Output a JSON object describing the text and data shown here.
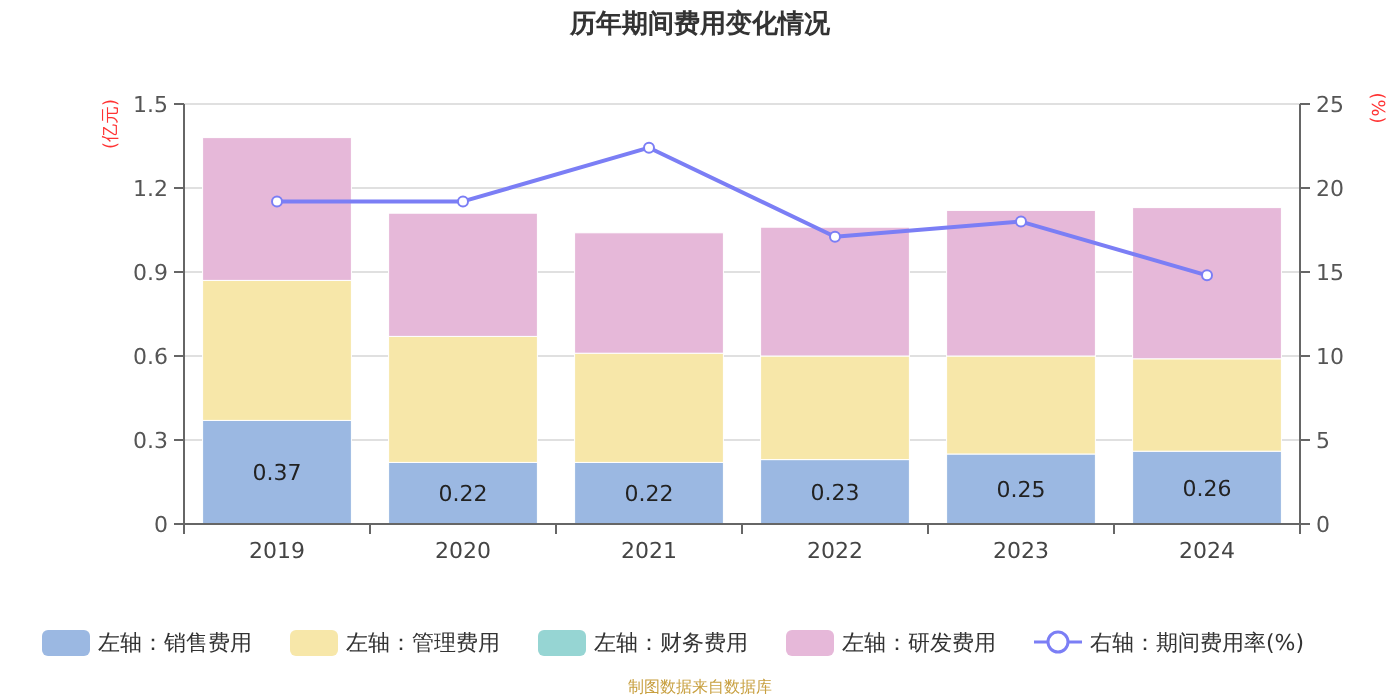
{
  "chart_data": {
    "type": "bar",
    "title": "历年期间费用变化情况",
    "ylabel": "(亿元)",
    "y2label": "(%)",
    "categories": [
      "2019",
      "2020",
      "2021",
      "2022",
      "2023",
      "2024"
    ],
    "stacked": true,
    "grid": "y",
    "legend": "bottom",
    "ylim": [
      0,
      1.5
    ],
    "yticks": [
      0,
      0.3,
      0.6,
      0.9,
      1.2,
      1.5
    ],
    "y2lim": [
      0,
      25
    ],
    "y2ticks": [
      0,
      5,
      10,
      15,
      20,
      25
    ],
    "series": [
      {
        "name": "左轴：销售费用",
        "color": "#9bb8e2",
        "values": [
          0.37,
          0.22,
          0.22,
          0.23,
          0.25,
          0.26
        ],
        "value_labels": [
          "0.37",
          "0.22",
          "0.22",
          "0.23",
          "0.25",
          "0.26"
        ]
      },
      {
        "name": "左轴：管理费用",
        "color": "#f7e7a9",
        "values": [
          0.5,
          0.45,
          0.39,
          0.37,
          0.35,
          0.33
        ]
      },
      {
        "name": "左轴：财务费用",
        "color": "#96d5d3",
        "values": [
          0,
          0,
          0,
          0,
          0,
          0
        ]
      },
      {
        "name": "左轴：研发费用",
        "color": "#e6b8d9",
        "values": [
          0.51,
          0.44,
          0.43,
          0.46,
          0.52,
          0.54
        ]
      },
      {
        "name": "右轴：期间费用率(%)",
        "type": "line",
        "axis": "y2",
        "marker": "circle",
        "color": "#7b7ef5",
        "values": [
          19.2,
          19.2,
          22.4,
          17.1,
          18.0,
          14.8
        ]
      }
    ],
    "annotations": [
      "制图数据来自数据库"
    ]
  }
}
